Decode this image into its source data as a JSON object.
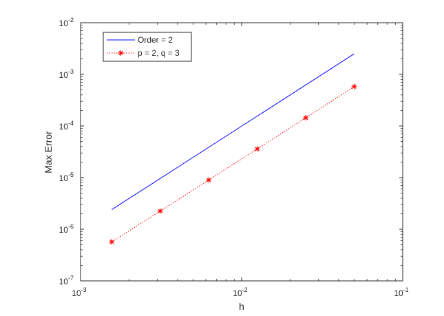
{
  "chart_data": {
    "type": "line",
    "xlabel": "h",
    "ylabel": "Max Error",
    "xscale": "log",
    "yscale": "log",
    "xlim": [
      0.001,
      0.1
    ],
    "ylim": [
      1e-07,
      0.01
    ],
    "grid": false,
    "legend_position": "top-left",
    "x_ticks": [
      {
        "value": 0.001,
        "base": "10",
        "exp": "-3"
      },
      {
        "value": 0.01,
        "base": "10",
        "exp": "-2"
      },
      {
        "value": 0.1,
        "base": "10",
        "exp": "-1"
      }
    ],
    "y_ticks": [
      {
        "value": 1e-07,
        "base": "10",
        "exp": "-7"
      },
      {
        "value": 1e-06,
        "base": "10",
        "exp": "-6"
      },
      {
        "value": 1e-05,
        "base": "10",
        "exp": "-5"
      },
      {
        "value": 0.0001,
        "base": "10",
        "exp": "-4"
      },
      {
        "value": 0.001,
        "base": "10",
        "exp": "-3"
      },
      {
        "value": 0.01,
        "base": "10",
        "exp": "-2"
      }
    ],
    "series": [
      {
        "name": "Order = 2",
        "style": "solid",
        "marker": "none",
        "color": "#0000ff",
        "x": [
          0.0015625,
          0.05
        ],
        "y": [
          2.4e-06,
          0.0025
        ]
      },
      {
        "name": "p = 2,  q = 3",
        "style": "dotted",
        "marker": "asterisk",
        "color": "#ff0000",
        "x": [
          0.0015625,
          0.003125,
          0.00625,
          0.0125,
          0.025,
          0.05
        ],
        "y": [
          5.7e-07,
          2.25e-06,
          9e-06,
          3.6e-05,
          0.000144,
          0.00058
        ]
      }
    ]
  }
}
